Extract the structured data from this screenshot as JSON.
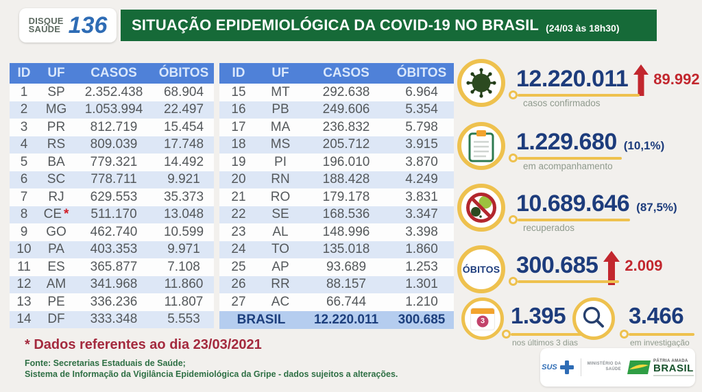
{
  "header": {
    "logo_line1": "DISQUE",
    "logo_line2": "SAÚDE",
    "logo_number": "136",
    "title": "SITUAÇÃO EPIDEMIOLÓGICA DA COVID-19 NO BRASIL",
    "title_suffix": "(24/03 às 18h30)"
  },
  "tables": {
    "columns": [
      "ID",
      "UF",
      "CASOS",
      "ÓBITOS"
    ],
    "left_rows": [
      {
        "id": "1",
        "uf": "SP",
        "casos": "2.352.438",
        "obitos": "68.904"
      },
      {
        "id": "2",
        "uf": "MG",
        "casos": "1.053.994",
        "obitos": "22.497"
      },
      {
        "id": "3",
        "uf": "PR",
        "casos": "812.719",
        "obitos": "15.454"
      },
      {
        "id": "4",
        "uf": "RS",
        "casos": "809.039",
        "obitos": "17.748"
      },
      {
        "id": "5",
        "uf": "BA",
        "casos": "779.321",
        "obitos": "14.492"
      },
      {
        "id": "6",
        "uf": "SC",
        "casos": "778.711",
        "obitos": "9.921"
      },
      {
        "id": "7",
        "uf": "RJ",
        "casos": "629.553",
        "obitos": "35.373"
      },
      {
        "id": "8",
        "uf": "CE",
        "note": "*",
        "casos": "511.170",
        "obitos": "13.048"
      },
      {
        "id": "9",
        "uf": "GO",
        "casos": "462.740",
        "obitos": "10.599"
      },
      {
        "id": "10",
        "uf": "PA",
        "casos": "403.353",
        "obitos": "9.971"
      },
      {
        "id": "11",
        "uf": "ES",
        "casos": "365.877",
        "obitos": "7.108"
      },
      {
        "id": "12",
        "uf": "AM",
        "casos": "341.968",
        "obitos": "11.860"
      },
      {
        "id": "13",
        "uf": "PE",
        "casos": "336.236",
        "obitos": "11.807"
      },
      {
        "id": "14",
        "uf": "DF",
        "casos": "333.348",
        "obitos": "5.553"
      }
    ],
    "right_rows": [
      {
        "id": "15",
        "uf": "MT",
        "casos": "292.638",
        "obitos": "6.964"
      },
      {
        "id": "16",
        "uf": "PB",
        "casos": "249.606",
        "obitos": "5.354"
      },
      {
        "id": "17",
        "uf": "MA",
        "casos": "236.832",
        "obitos": "5.798"
      },
      {
        "id": "18",
        "uf": "MS",
        "casos": "205.712",
        "obitos": "3.915"
      },
      {
        "id": "19",
        "uf": "PI",
        "casos": "196.010",
        "obitos": "3.870"
      },
      {
        "id": "20",
        "uf": "RN",
        "casos": "188.428",
        "obitos": "4.249"
      },
      {
        "id": "21",
        "uf": "RO",
        "casos": "179.178",
        "obitos": "3.831"
      },
      {
        "id": "22",
        "uf": "SE",
        "casos": "168.536",
        "obitos": "3.347"
      },
      {
        "id": "23",
        "uf": "AL",
        "casos": "148.996",
        "obitos": "3.398"
      },
      {
        "id": "24",
        "uf": "TO",
        "casos": "135.018",
        "obitos": "1.860"
      },
      {
        "id": "25",
        "uf": "AP",
        "casos": "93.689",
        "obitos": "1.253"
      },
      {
        "id": "26",
        "uf": "RR",
        "casos": "88.157",
        "obitos": "1.301"
      },
      {
        "id": "27",
        "uf": "AC",
        "casos": "66.744",
        "obitos": "1.210"
      }
    ],
    "total": {
      "label": "BRASIL",
      "casos": "12.220.011",
      "obitos": "300.685"
    }
  },
  "stats": [
    {
      "value": "12.220.011",
      "delta": "89.992",
      "label": "casos confirmados"
    },
    {
      "value": "1.229.680",
      "percent": "(10,1%)",
      "label": "em acompanhamento"
    },
    {
      "value": "10.689.646",
      "percent": "(87,5%)",
      "label": "recuperados"
    },
    {
      "icon_label": "ÓBITOS",
      "value": "300.685",
      "delta": "2.009"
    }
  ],
  "mini_stats": [
    {
      "badge": "3",
      "value": "1.395",
      "label": "nos últimos 3 dias"
    },
    {
      "value": "3.466",
      "label": "em investigação"
    }
  ],
  "footnote": "* Dados referentes ao dia 23/03/2021",
  "source_line1": "Fonte: Secretarias Estaduais de Saúde;",
  "source_line2": "Sistema de Informação da Vigilância Epidemiológica da Gripe - dados sujeitos a alterações.",
  "logos": {
    "sus": "SUS",
    "ministerio_line1": "MINISTÉRIO DA",
    "ministerio_line2": "SAÚDE",
    "patria": "PÁTRIA AMADA",
    "brasil": "BRASIL"
  },
  "colors": {
    "banner_green": "#166a38",
    "table_header_blue": "#4f81d8",
    "row_stripe_blue": "#dde7f6",
    "total_row_blue": "#b5cdef",
    "stat_navy": "#1d3c7c",
    "alert_red": "#c2272e",
    "gold_ring": "#eec14e",
    "footnote_red": "#a42a3e",
    "source_green": "#2e6f44"
  }
}
